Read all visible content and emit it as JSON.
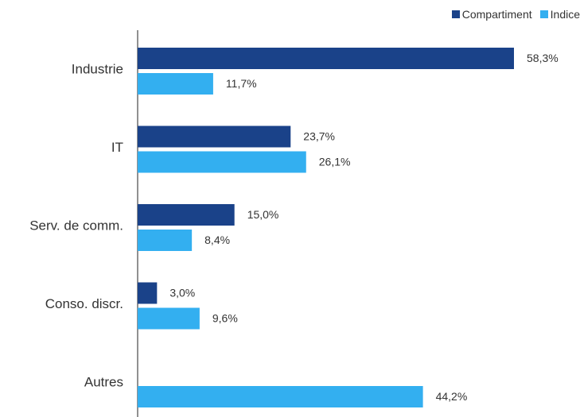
{
  "chart_data": {
    "type": "bar",
    "orientation": "horizontal",
    "categories": [
      "Industrie",
      "IT",
      "Serv. de comm.",
      "Conso. discr.",
      "Autres"
    ],
    "series": [
      {
        "name": "Compartiment",
        "color": "#1a4289",
        "values": [
          58.3,
          23.7,
          15.0,
          3.0,
          null
        ],
        "labels": [
          "58,3%",
          "23,7%",
          "15,0%",
          "3,0%",
          null
        ]
      },
      {
        "name": "Indice",
        "color": "#33aff0",
        "values": [
          11.7,
          26.1,
          8.4,
          9.6,
          44.2
        ],
        "labels": [
          "11,7%",
          "26,1%",
          "8,4%",
          "9,6%",
          "44,2%"
        ]
      }
    ],
    "xlim": [
      0,
      58.3
    ],
    "legend_position": "top-right",
    "grid": false
  }
}
